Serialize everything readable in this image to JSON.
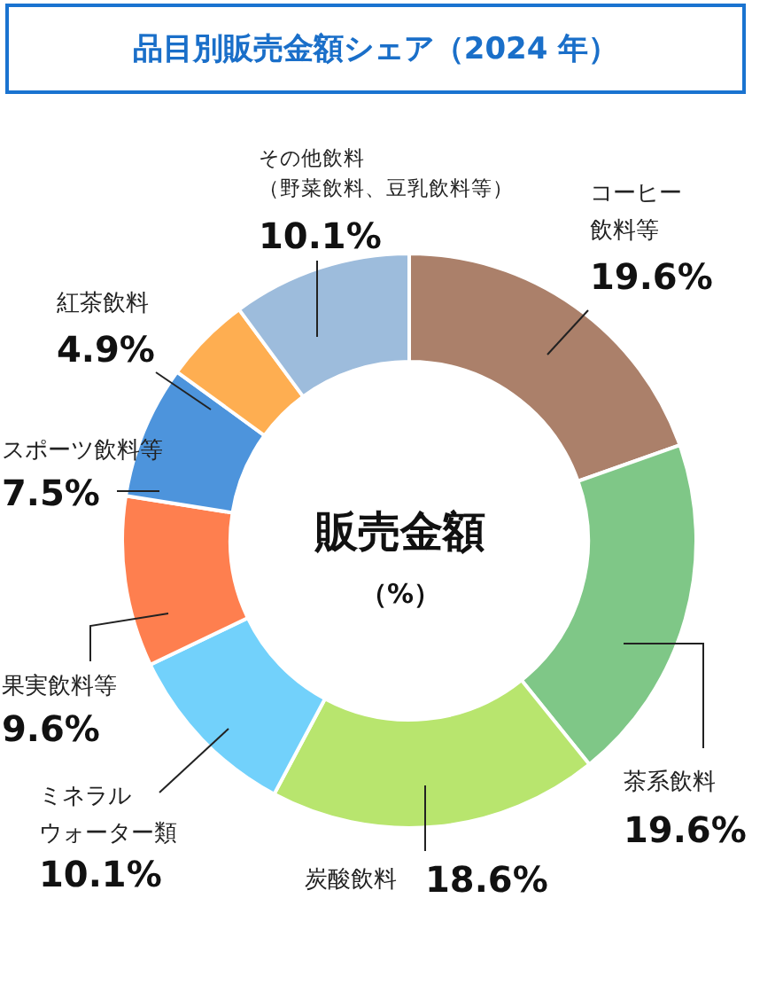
{
  "chart_data": {
    "type": "donut",
    "title": "品目別販売金額シェア（2024 年）",
    "categories": [
      "コーヒー飲料等",
      "茶系飲料",
      "炭酸飲料",
      "ミネラルウォーター類",
      "果実飲料等",
      "スポーツ飲料等",
      "紅茶飲料",
      "その他飲料（野菜飲料、豆乳飲料等）"
    ],
    "values": [
      19.6,
      19.6,
      18.6,
      10.1,
      9.6,
      7.5,
      4.9,
      10.1
    ],
    "value_labels": [
      "19.6%",
      "19.6%",
      "18.6%",
      "10.1%",
      "9.6%",
      "7.5%",
      "4.9%",
      "10.1%"
    ],
    "colors": [
      "#ab806a",
      "#7fc787",
      "#b8e56e",
      "#72d1fb",
      "#fe7f4f",
      "#4d94dc",
      "#feae51",
      "#9dbcdc"
    ],
    "annotations": [
      "販売金額",
      "（%）"
    ],
    "legend": false
  }
}
